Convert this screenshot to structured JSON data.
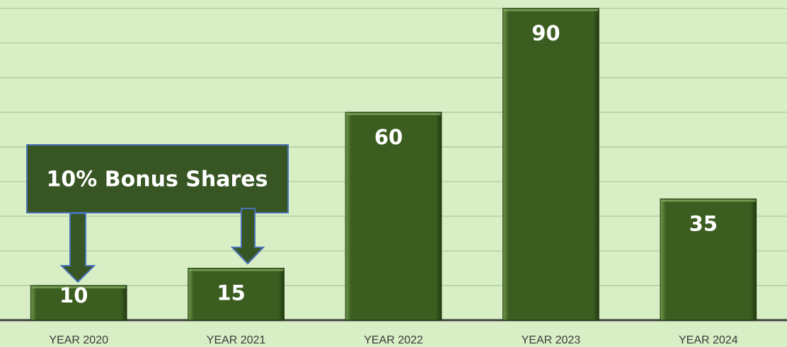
{
  "chart_data": {
    "type": "bar",
    "categories": [
      "YEAR 2020",
      "YEAR 2021",
      "YEAR 2022",
      "YEAR 2023",
      "YEAR 2024"
    ],
    "values": [
      10,
      15,
      60,
      90,
      35
    ],
    "color": "#3b5e20",
    "ylim": [
      0,
      92
    ],
    "yticks": [
      0,
      10,
      20,
      30,
      40,
      50,
      60,
      70,
      80,
      90
    ],
    "grid": true,
    "annotation": "10% Bonus Shares"
  }
}
